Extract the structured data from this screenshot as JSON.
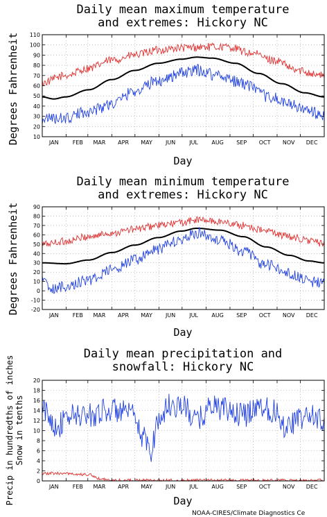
{
  "months": [
    "JAN",
    "FEB",
    "MAR",
    "APR",
    "MAY",
    "JUN",
    "JUL",
    "AUG",
    "SEP",
    "OCT",
    "NOV",
    "DEC"
  ],
  "colors": {
    "mean": "#000000",
    "max_extreme": "#e03030",
    "min_extreme": "#2040e0",
    "precip": "#2040e0",
    "snow": "#e03030",
    "grid": "#999999"
  },
  "credit": "NOAA-CIRES/Climate Diagnostics Ce",
  "chart_data": [
    {
      "type": "line",
      "title_line1": "Daily mean maximum temperature",
      "title_line2": "and extremes: Hickory NC",
      "xlabel": "Day",
      "ylabel": "Degrees Fahrenheit",
      "ylim": [
        10,
        110
      ],
      "yticks": [
        10,
        20,
        30,
        40,
        50,
        60,
        70,
        80,
        90,
        100,
        110
      ],
      "grid": true,
      "series": [
        {
          "role": "max_extreme",
          "anchors": [
            [
              0,
              63
            ],
            [
              30,
              70
            ],
            [
              60,
              77
            ],
            [
              90,
              85
            ],
            [
              120,
              90
            ],
            [
              150,
              95
            ],
            [
              180,
              97
            ],
            [
              210,
              98
            ],
            [
              240,
              98
            ],
            [
              270,
              92
            ],
            [
              300,
              85
            ],
            [
              330,
              75
            ],
            [
              365,
              70
            ]
          ],
          "noise": 4
        },
        {
          "role": "mean",
          "anchors": [
            [
              0,
              49
            ],
            [
              15,
              47
            ],
            [
              30,
              49
            ],
            [
              60,
              56
            ],
            [
              90,
              66
            ],
            [
              120,
              75
            ],
            [
              150,
              82
            ],
            [
              180,
              86
            ],
            [
              200,
              88
            ],
            [
              220,
              87
            ],
            [
              250,
              82
            ],
            [
              280,
              72
            ],
            [
              310,
              62
            ],
            [
              340,
              53
            ],
            [
              365,
              49
            ]
          ],
          "noise": 0
        },
        {
          "role": "min_extreme",
          "anchors": [
            [
              0,
              28
            ],
            [
              30,
              28
            ],
            [
              60,
              35
            ],
            [
              90,
              42
            ],
            [
              120,
              55
            ],
            [
              150,
              65
            ],
            [
              180,
              72
            ],
            [
              200,
              75
            ],
            [
              230,
              70
            ],
            [
              260,
              62
            ],
            [
              290,
              50
            ],
            [
              320,
              42
            ],
            [
              345,
              35
            ],
            [
              365,
              30
            ]
          ],
          "noise": 6
        }
      ]
    },
    {
      "type": "line",
      "title_line1": "Daily mean minimum temperature",
      "title_line2": "and extremes: Hickory NC",
      "xlabel": "Day",
      "ylabel": "Degrees Fahrenheit",
      "ylim": [
        -20,
        90
      ],
      "yticks": [
        -20,
        -10,
        0,
        10,
        20,
        30,
        40,
        50,
        60,
        70,
        80,
        90
      ],
      "grid": true,
      "series": [
        {
          "role": "max_extreme",
          "anchors": [
            [
              0,
              50
            ],
            [
              30,
              53
            ],
            [
              60,
              58
            ],
            [
              90,
              62
            ],
            [
              120,
              66
            ],
            [
              150,
              70
            ],
            [
              180,
              73
            ],
            [
              200,
              76
            ],
            [
              230,
              74
            ],
            [
              260,
              70
            ],
            [
              290,
              64
            ],
            [
              320,
              58
            ],
            [
              345,
              54
            ],
            [
              365,
              50
            ]
          ],
          "noise": 4
        },
        {
          "role": "mean",
          "anchors": [
            [
              0,
              30
            ],
            [
              30,
              29
            ],
            [
              60,
              33
            ],
            [
              90,
              41
            ],
            [
              120,
              49
            ],
            [
              150,
              57
            ],
            [
              180,
              64
            ],
            [
              200,
              67
            ],
            [
              230,
              65
            ],
            [
              260,
              58
            ],
            [
              290,
              47
            ],
            [
              320,
              38
            ],
            [
              345,
              32
            ],
            [
              365,
              30
            ]
          ],
          "noise": 0
        },
        {
          "role": "min_extreme",
          "anchors": [
            [
              0,
              10
            ],
            [
              15,
              2
            ],
            [
              30,
              5
            ],
            [
              60,
              12
            ],
            [
              90,
              22
            ],
            [
              120,
              33
            ],
            [
              150,
              45
            ],
            [
              180,
              55
            ],
            [
              200,
              62
            ],
            [
              230,
              55
            ],
            [
              260,
              42
            ],
            [
              290,
              28
            ],
            [
              320,
              18
            ],
            [
              345,
              10
            ],
            [
              365,
              8
            ]
          ],
          "noise": 6
        }
      ]
    },
    {
      "type": "line",
      "title_line1": "Daily mean precipitation and",
      "title_line2": "snowfall: Hickory NC",
      "xlabel": "Day",
      "ylabel_line1": "Precip in hundredths of inches",
      "ylabel_line2": "Snow in tenths",
      "ylim": [
        0,
        20
      ],
      "yticks": [
        0,
        2,
        4,
        6,
        8,
        10,
        12,
        14,
        16,
        18,
        20
      ],
      "grid": true,
      "series": [
        {
          "role": "precip",
          "anchors": [
            [
              0,
              14
            ],
            [
              20,
              11
            ],
            [
              40,
              13
            ],
            [
              60,
              13
            ],
            [
              80,
              14
            ],
            [
              100,
              14
            ],
            [
              115,
              13
            ],
            [
              130,
              9
            ],
            [
              140,
              6
            ],
            [
              150,
              12
            ],
            [
              165,
              15
            ],
            [
              180,
              15
            ],
            [
              200,
              12
            ],
            [
              220,
              15
            ],
            [
              240,
              14
            ],
            [
              260,
              13
            ],
            [
              280,
              15
            ],
            [
              300,
              14
            ],
            [
              315,
              11
            ],
            [
              330,
              12
            ],
            [
              345,
              13
            ],
            [
              365,
              12
            ]
          ],
          "noise": 2.5
        },
        {
          "role": "snow",
          "anchors": [
            [
              0,
              1.5
            ],
            [
              30,
              1.5
            ],
            [
              60,
              1.2
            ],
            [
              75,
              0.5
            ],
            [
              85,
              0.1
            ],
            [
              100,
              0.1
            ],
            [
              365,
              0.1
            ]
          ],
          "noise": 0.3
        }
      ]
    }
  ]
}
